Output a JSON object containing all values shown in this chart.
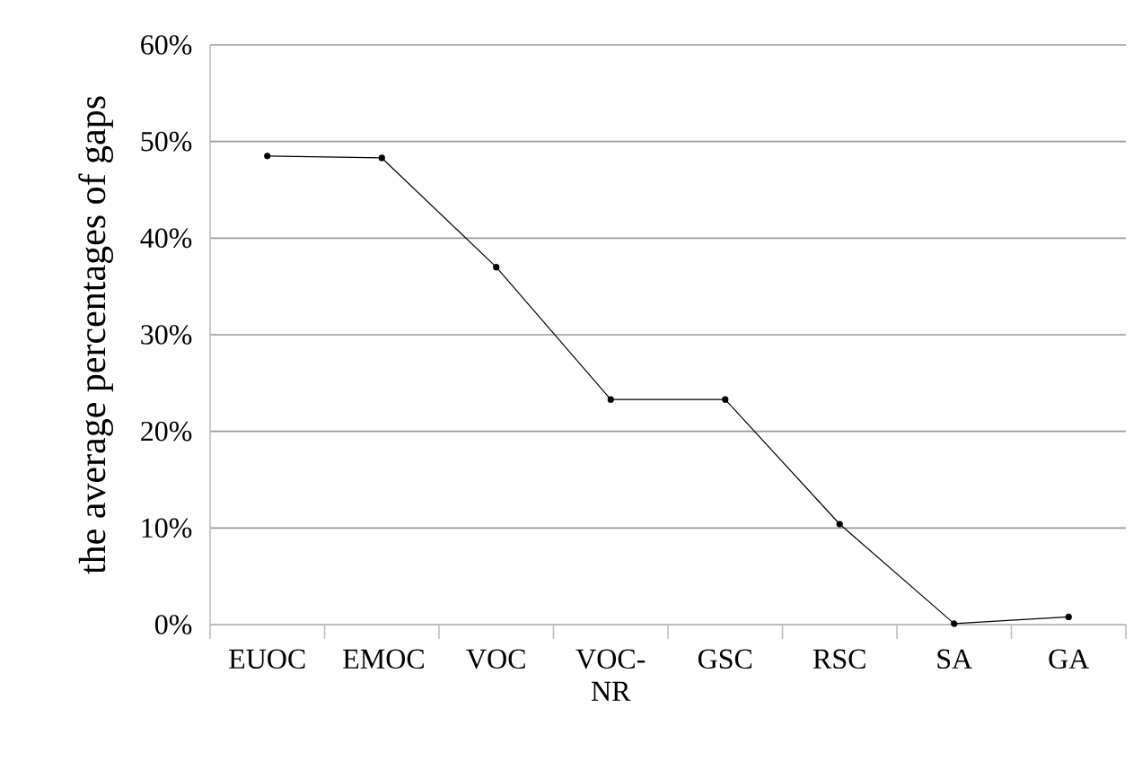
{
  "chart_data": {
    "type": "line",
    "ylabel": "the average percentages of gaps",
    "categories": [
      "EUOC",
      "EMOC",
      "VOC",
      "VOC-NR",
      "GSC",
      "RSC",
      "SA",
      "GA"
    ],
    "values": [
      48.5,
      48.3,
      37,
      23.3,
      23.3,
      10.4,
      0.1,
      0.8
    ],
    "color": "#000000",
    "marker": "circle",
    "line_style": "solid",
    "grid": "y",
    "ylim": [
      0,
      60
    ],
    "yticks": [
      {
        "value": 0,
        "label": "0%"
      },
      {
        "value": 10,
        "label": "10%"
      },
      {
        "value": 20,
        "label": "20%"
      },
      {
        "value": 30,
        "label": "30%"
      },
      {
        "value": 40,
        "label": "40%"
      },
      {
        "value": 50,
        "label": "50%"
      },
      {
        "value": 60,
        "label": "60%"
      }
    ]
  }
}
